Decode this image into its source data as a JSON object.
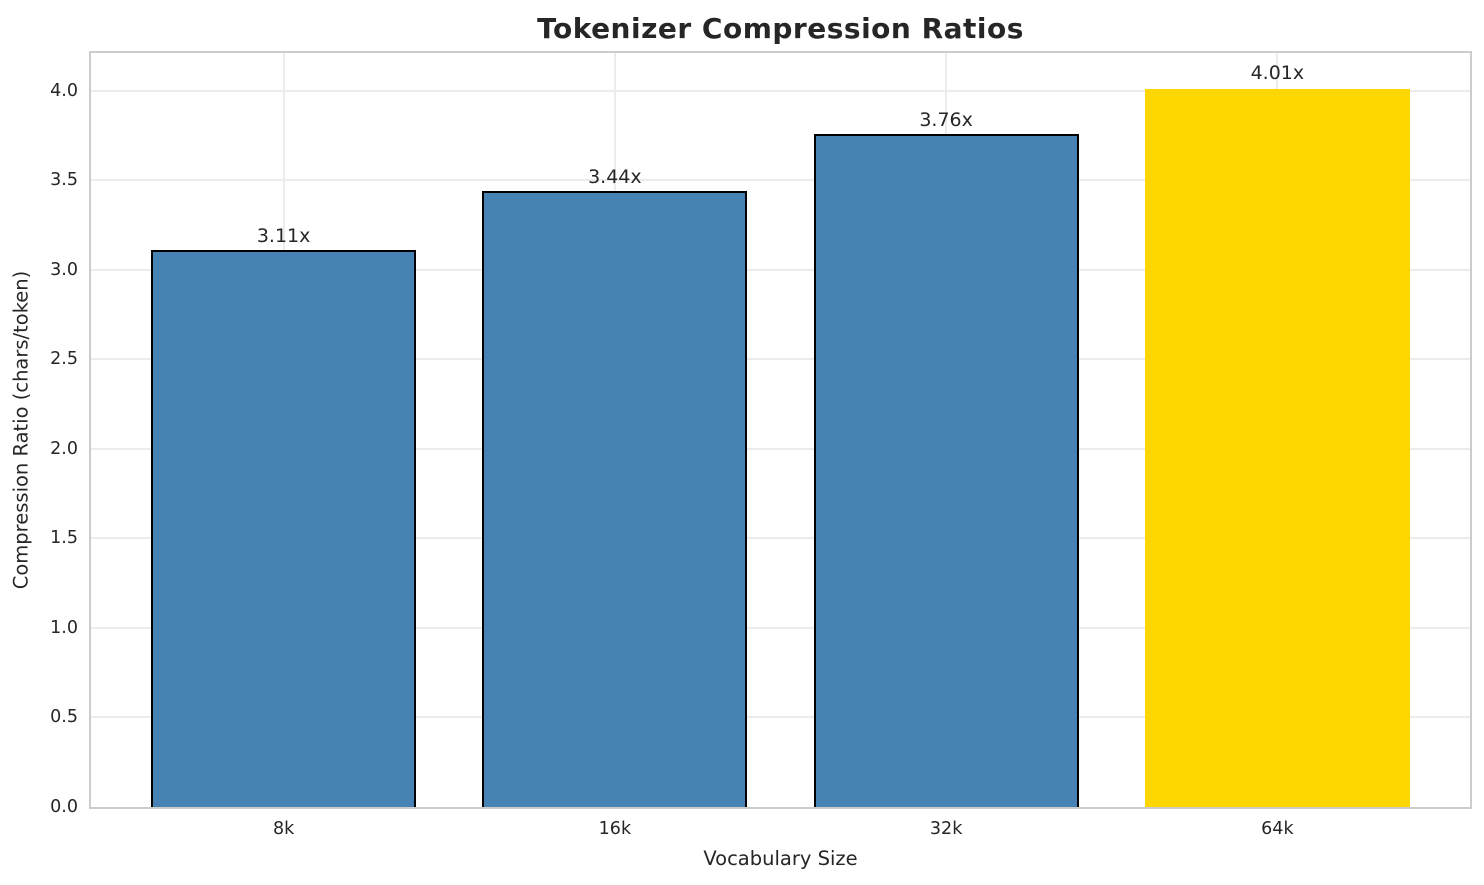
{
  "chart_data": {
    "type": "bar",
    "title": "Tokenizer Compression Ratios",
    "xlabel": "Vocabulary Size",
    "ylabel": "Compression Ratio (chars/token)",
    "categories": [
      "8k",
      "16k",
      "32k",
      "64k"
    ],
    "values": [
      3.11,
      3.44,
      3.76,
      4.01
    ],
    "bar_labels": [
      "3.11x",
      "3.44x",
      "3.76x",
      "4.01x"
    ],
    "ylim": [
      0,
      4.21
    ],
    "yticks": [
      0,
      0.5,
      1,
      1.5,
      2,
      2.5,
      3,
      3.5,
      4
    ],
    "ytick_labels": [
      "0.0",
      "0.5",
      "1.0",
      "1.5",
      "2.0",
      "2.5",
      "3.0",
      "3.5",
      "4.0"
    ],
    "grid": true,
    "legend_position": "none",
    "highlight_index": 3,
    "colors": {
      "bar": "#4682B4",
      "highlight": "#FFD700",
      "bar_edge": "#000000",
      "grid": "#ececec",
      "spine": "#cccccc",
      "text": "#262626"
    }
  }
}
